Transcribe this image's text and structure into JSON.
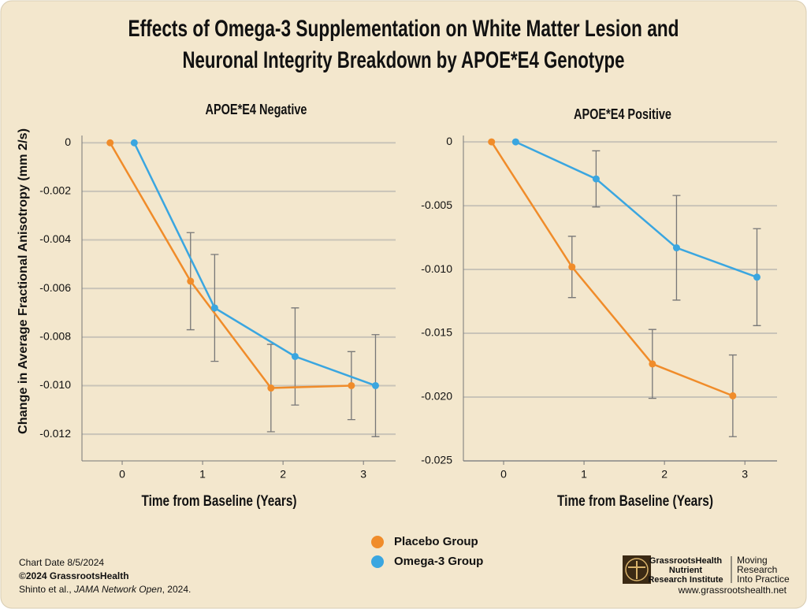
{
  "title": [
    "Effects of Omega-3 Supplementation on White Matter Lesion and",
    "Neuronal Integrity Breakdown by APOE*E4 Genotype"
  ],
  "chart_data": [
    {
      "type": "line",
      "title": "APOE*E4 Negative",
      "x_label": "Time from Baseline (Years)",
      "y_label": "Change in Average Fractional Anisotropy (mm 2/s)",
      "xlim": [
        -0.5,
        3.4
      ],
      "xticks": [
        0,
        1,
        2,
        3
      ],
      "ylim": [
        -0.0131,
        0.0003
      ],
      "yticks": [
        0,
        -0.002,
        -0.004,
        -0.006,
        -0.008,
        {
          "value": -0.01,
          "label": "-0.010"
        },
        -0.012
      ],
      "grid": true,
      "series": [
        {
          "name": "Placebo Group",
          "color": "#f08c2a",
          "x": [
            -0.15,
            0.85,
            1.85,
            2.85
          ],
          "values": [
            0,
            -0.0057,
            -0.0101,
            -0.01
          ],
          "errors": [
            null,
            0.002,
            0.0018,
            0.0014
          ]
        },
        {
          "name": "Omega-3 Group",
          "color": "#3aa6e0",
          "x": [
            0.15,
            1.15,
            2.15,
            3.15
          ],
          "values": [
            0,
            -0.0068,
            -0.0088,
            -0.01
          ],
          "errors": [
            null,
            0.0022,
            0.002,
            0.0021
          ]
        }
      ]
    },
    {
      "type": "line",
      "title": "APOE*E4 Positive",
      "x_label": "Time from Baseline (Years)",
      "xlim": [
        -0.5,
        3.4
      ],
      "xticks": [
        0,
        1,
        2,
        3
      ],
      "ylim": [
        -0.025,
        0.0005
      ],
      "yticks": [
        0,
        -0.005,
        {
          "value": -0.01,
          "label": "-0.010"
        },
        -0.015,
        {
          "value": -0.02,
          "label": "-0.020"
        },
        -0.025
      ],
      "grid": true,
      "series": [
        {
          "name": "Placebo Group",
          "color": "#f08c2a",
          "x": [
            -0.15,
            0.85,
            1.85,
            2.85
          ],
          "values": [
            0,
            -0.0098,
            -0.0174,
            -0.0199
          ],
          "errors": [
            null,
            0.0024,
            0.0027,
            0.0032
          ]
        },
        {
          "name": "Omega-3 Group",
          "color": "#3aa6e0",
          "x": [
            0.15,
            1.15,
            2.15,
            3.15
          ],
          "values": [
            0,
            -0.0029,
            -0.0083,
            -0.0106
          ],
          "errors": [
            null,
            0.0022,
            0.0041,
            0.0038
          ]
        }
      ]
    }
  ],
  "footer": {
    "date": "Chart Date 8/5/2024",
    "copyright": "©2024 GrassrootsHealth",
    "citation": [
      "Shinto et al., ",
      "JAMA Network Open",
      ", 2024."
    ],
    "logo": [
      "GrassrootsHealth",
      "Nutrient",
      "Research Institute"
    ],
    "tagline": [
      "Moving",
      "Research",
      "Into Practice"
    ],
    "url": "www.grassrootshealth.net"
  }
}
